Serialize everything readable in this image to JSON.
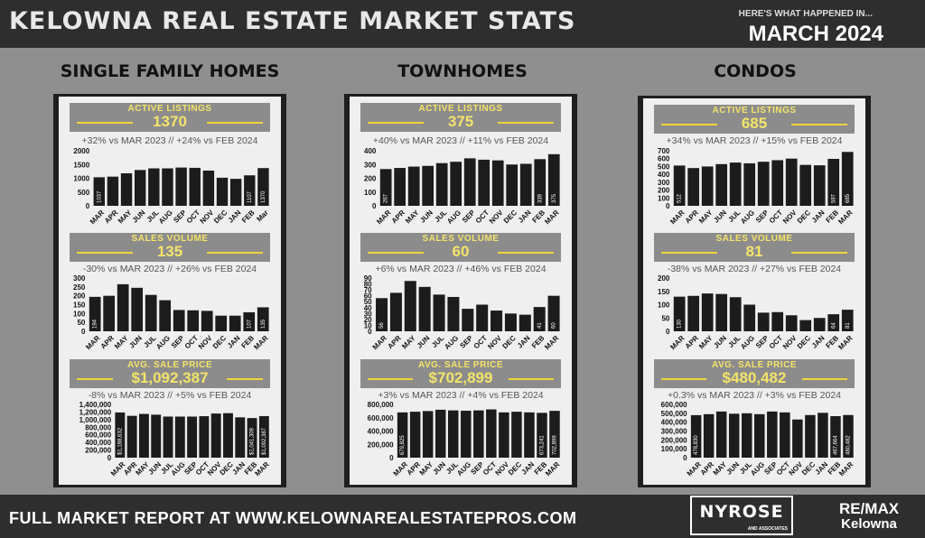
{
  "header": {
    "title": "KELOWNA REAL ESTATE MARKET STATS",
    "kicker": "HERE'S WHAT HAPPENED IN...",
    "period": "MARCH 2024"
  },
  "columns": [
    {
      "name": "SINGLE FAMILY HOMES",
      "sections": [
        {
          "label": "ACTIVE LISTINGS",
          "value": "1370",
          "compare": "+32% vs MAR 2023 // +24% vs FEB 2024"
        },
        {
          "label": "SALES VOLUME",
          "value": "135",
          "compare": "-30% vs  MAR 2023 // +26% vs FEB 2024"
        },
        {
          "label": "AVG. SALE PRICE",
          "value": "$1,092,387",
          "compare": "-8% vs  MAR 2023 // +5% vs FEB 2024"
        }
      ]
    },
    {
      "name": "TOWNHOMES",
      "sections": [
        {
          "label": "ACTIVE LISTINGS",
          "value": "375",
          "compare": "+40% vs MAR 2023 // +11% vs FEB 2024"
        },
        {
          "label": "SALES VOLUME",
          "value": "60",
          "compare": "+6% vs  MAR 2023 // +46% vs FEB 2024"
        },
        {
          "label": "AVG. SALE PRICE",
          "value": "$702,899",
          "compare": "+3% vs  MAR 2023 // +4% vs FEB 2024"
        }
      ]
    },
    {
      "name": "CONDOS",
      "sections": [
        {
          "label": "ACTIVE LISTINGS",
          "value": "685",
          "compare": "+34% vs MAR 2023 // +15% vs FEB 2024"
        },
        {
          "label": "SALES VOLUME",
          "value": "81",
          "compare": "-38% vs  MAR 2023 // +27% vs FEB 2024"
        },
        {
          "label": "AVG. SALE PRICE",
          "value": "$480,482",
          "compare": "+0.3% vs  MAR 2023 // +3% vs FEB 2024"
        }
      ]
    }
  ],
  "chart_data": [
    {
      "type": "bar",
      "id": "sfh-listings",
      "categories": [
        "MAR",
        "APR",
        "MAY",
        "JUN",
        "JUL",
        "AUG",
        "SEP",
        "OCT",
        "NOV",
        "DEC",
        "JAN",
        "FEB",
        "Mar"
      ],
      "values": [
        1037,
        1060,
        1180,
        1300,
        1360,
        1360,
        1390,
        1380,
        1280,
        1020,
        980,
        1107,
        1370
      ],
      "data_labels": [
        "1037",
        "",
        "",
        "",
        "",
        "",
        "",
        "",
        "",
        "",
        "",
        "1107",
        "1370"
      ],
      "yticks": [
        "0",
        "500",
        "1000",
        "1500",
        "2000"
      ],
      "ylim": [
        0,
        2000
      ]
    },
    {
      "type": "bar",
      "id": "sfh-sales",
      "categories": [
        "MAR",
        "APR",
        "MAY",
        "JUN",
        "JUL",
        "AUG",
        "SEP",
        "OCT",
        "NOV",
        "DEC",
        "JAN",
        "FEB",
        "MAR"
      ],
      "values": [
        194,
        200,
        265,
        245,
        205,
        175,
        120,
        118,
        115,
        88,
        88,
        107,
        135
      ],
      "data_labels": [
        "194",
        "",
        "",
        "",
        "",
        "",
        "",
        "",
        "",
        "",
        "",
        "107",
        "135"
      ],
      "yticks": [
        "0",
        "50",
        "100",
        "150",
        "200",
        "250",
        "300"
      ],
      "ylim": [
        0,
        300
      ]
    },
    {
      "type": "bar",
      "id": "sfh-price",
      "categories": [
        "MAR",
        "APR",
        "MAY",
        "JUN",
        "JUL",
        "AUG",
        "SEP",
        "OCT",
        "NOV",
        "DEC",
        "JAN",
        "FEB",
        "MAR"
      ],
      "values": [
        1188632,
        1100000,
        1150000,
        1130000,
        1080000,
        1080000,
        1080000,
        1090000,
        1160000,
        1170000,
        1060000,
        1041309,
        1092387
      ],
      "data_labels": [
        "$1,188,632",
        "",
        "",
        "",
        "",
        "",
        "",
        "",
        "",
        "",
        "",
        "$1,041,309",
        "$1,092,387"
      ],
      "yticks": [
        "0",
        "200,000",
        "400,000",
        "600,000",
        "800,000",
        "1,000,000",
        "1,200,000",
        "1,400,000"
      ],
      "ylim": [
        0,
        1400000
      ]
    },
    {
      "type": "bar",
      "id": "th-listings",
      "categories": [
        "MAR",
        "APR",
        "MAY",
        "JUN",
        "JUL",
        "AUG",
        "SEP",
        "OCT",
        "NOV",
        "DEC",
        "JAN",
        "FEB",
        "MAR"
      ],
      "values": [
        267,
        275,
        285,
        290,
        310,
        320,
        345,
        335,
        330,
        300,
        305,
        339,
        375
      ],
      "data_labels": [
        "267",
        "",
        "",
        "",
        "",
        "",
        "",
        "",
        "",
        "",
        "",
        "339",
        "375"
      ],
      "yticks": [
        "0",
        "100",
        "200",
        "300",
        "400"
      ],
      "ylim": [
        0,
        400
      ]
    },
    {
      "type": "bar",
      "id": "th-sales",
      "categories": [
        "MAR",
        "APR",
        "MAY",
        "JUN",
        "JUL",
        "AUG",
        "SEP",
        "OCT",
        "NOV",
        "DEC",
        "JAN",
        "FEB",
        "MAR"
      ],
      "values": [
        56,
        65,
        85,
        75,
        62,
        58,
        38,
        45,
        35,
        30,
        28,
        41,
        60
      ],
      "data_labels": [
        "56",
        "",
        "",
        "",
        "",
        "",
        "",
        "",
        "",
        "",
        "",
        "41",
        "60"
      ],
      "yticks": [
        "0",
        "10",
        "20",
        "30",
        "40",
        "50",
        "60",
        "70",
        "80",
        "90"
      ],
      "ylim": [
        0,
        90
      ]
    },
    {
      "type": "bar",
      "id": "th-price",
      "categories": [
        "MAR",
        "APR",
        "MAY",
        "JUN",
        "JUL",
        "AUG",
        "SEP",
        "OCT",
        "NOV",
        "DEC",
        "JAN",
        "FEB",
        "MAR"
      ],
      "values": [
        679825,
        690000,
        700000,
        720000,
        710000,
        705000,
        710000,
        725000,
        680000,
        690000,
        680000,
        673241,
        702899
      ],
      "data_labels": [
        "679,825",
        "",
        "",
        "",
        "",
        "",
        "",
        "",
        "",
        "",
        "",
        "673,241",
        "702,899"
      ],
      "yticks": [
        "0",
        "200,000",
        "400,000",
        "600,000",
        "800,000"
      ],
      "ylim": [
        0,
        800000
      ]
    },
    {
      "type": "bar",
      "id": "condo-listings",
      "categories": [
        "MAR",
        "APR",
        "MAY",
        "JUN",
        "JUL",
        "AUG",
        "SEP",
        "OCT",
        "NOV",
        "DEC",
        "JAN",
        "FEB",
        "MAR"
      ],
      "values": [
        512,
        480,
        500,
        530,
        550,
        540,
        560,
        580,
        600,
        520,
        515,
        597,
        685
      ],
      "data_labels": [
        "512",
        "",
        "",
        "",
        "",
        "",
        "",
        "",
        "",
        "",
        "",
        "597",
        "685"
      ],
      "yticks": [
        "0",
        "100",
        "200",
        "300",
        "400",
        "500",
        "600",
        "700"
      ],
      "ylim": [
        0,
        700
      ]
    },
    {
      "type": "bar",
      "id": "condo-sales",
      "categories": [
        "MAR",
        "APR",
        "MAY",
        "JUN",
        "JUL",
        "AUG",
        "SEP",
        "OCT",
        "NOV",
        "DEC",
        "JAN",
        "FEB",
        "MAR"
      ],
      "values": [
        130,
        133,
        142,
        140,
        128,
        100,
        70,
        72,
        60,
        42,
        50,
        64,
        81
      ],
      "data_labels": [
        "130",
        "",
        "",
        "",
        "",
        "",
        "",
        "",
        "",
        "",
        "",
        "64",
        "81"
      ],
      "yticks": [
        "0",
        "50",
        "100",
        "150",
        "200"
      ],
      "ylim": [
        0,
        200
      ]
    },
    {
      "type": "bar",
      "id": "condo-price",
      "categories": [
        "MAR",
        "APR",
        "MAY",
        "JUN",
        "JUL",
        "AUG",
        "SEP",
        "OCT",
        "NOV",
        "DEC",
        "JAN",
        "FEB",
        "MAR"
      ],
      "values": [
        478830,
        490000,
        520000,
        495000,
        500000,
        490000,
        520000,
        510000,
        430000,
        480000,
        505000,
        467664,
        480482
      ],
      "data_labels": [
        "478,830",
        "",
        "",
        "",
        "",
        "",
        "",
        "",
        "",
        "",
        "",
        "467,664",
        "480,482"
      ],
      "yticks": [
        "0",
        "100,000",
        "200,000",
        "300,000",
        "400,000",
        "500,000",
        "600,000"
      ],
      "ylim": [
        0,
        600000
      ]
    }
  ],
  "footer": {
    "text": "FULL MARKET REPORT AT WWW.KELOWNAREALESTATEPROS.COM",
    "logo1_main": "NYROSE",
    "logo1_sub": "AND ASSOCIATES",
    "logo2_main": "RE/MAX",
    "logo2_sub": "Kelowna"
  },
  "colors": {
    "bar": "#1c1c1c",
    "accent": "#f4e46a",
    "label_box": "#8c8c8c"
  }
}
